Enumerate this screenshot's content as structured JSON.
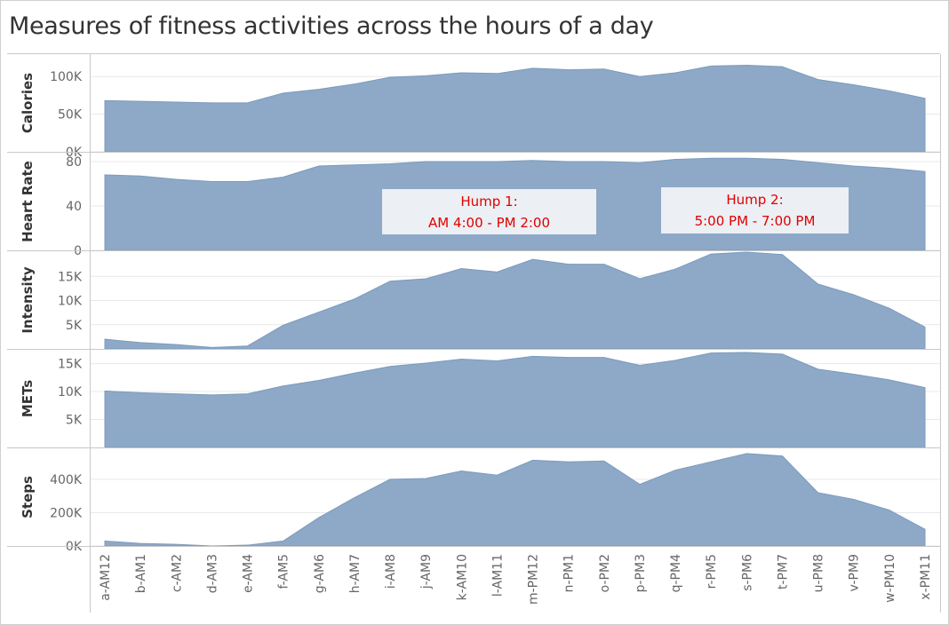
{
  "title": "Measures of fitness activities across the hours of a day",
  "colors": {
    "area_fill": "#8da9c7",
    "area_stroke": "#7b9abd",
    "gridline": "#e9e9e9",
    "annotation_bg": "#eceff3",
    "annotation_text": "#e00000"
  },
  "chart_data": {
    "type": "area",
    "x": [
      "a-AM12",
      "b-AM1",
      "c-AM2",
      "d-AM3",
      "e-AM4",
      "f-AM5",
      "g-AM6",
      "h-AM7",
      "i-AM8",
      "j-AM9",
      "k-AM10",
      "l-AM11",
      "m-PM12",
      "n-PM1",
      "o-PM2",
      "p-PM3",
      "q-PM4",
      "r-PM5",
      "s-PM6",
      "t-PM7",
      "u-PM8",
      "v-PM9",
      "w-PM10",
      "x-PM11"
    ],
    "grid": true,
    "panels": [
      {
        "name": "Calories",
        "ylim": [
          0,
          125000
        ],
        "ticks": [
          {
            "v": 0,
            "label": "0K"
          },
          {
            "v": 50000,
            "label": "50K"
          },
          {
            "v": 100000,
            "label": "100K"
          }
        ],
        "values": [
          68000,
          67000,
          66000,
          65000,
          65000,
          78000,
          83000,
          90000,
          99000,
          101000,
          105000,
          104000,
          111000,
          109000,
          110000,
          100000,
          105000,
          114000,
          115000,
          113000,
          96000,
          89000,
          81000,
          71000
        ]
      },
      {
        "name": "Heart Rate",
        "ylim": [
          0,
          88
        ],
        "ticks": [
          {
            "v": 0,
            "label": "0"
          },
          {
            "v": 40,
            "label": "40"
          },
          {
            "v": 80,
            "label": "80"
          }
        ],
        "values": [
          68,
          67,
          64,
          62,
          62,
          66,
          76,
          77,
          78,
          80,
          80,
          80,
          81,
          80,
          80,
          79,
          82,
          83,
          83,
          82,
          79,
          76,
          74,
          71
        ]
      },
      {
        "name": "Intensity",
        "ylim": [
          0,
          20000
        ],
        "ticks": [
          {
            "v": 5000,
            "label": "5K"
          },
          {
            "v": 10000,
            "label": "10K"
          },
          {
            "v": 15000,
            "label": "15K"
          }
        ],
        "values": [
          2000,
          1300,
          900,
          300,
          600,
          4900,
          7600,
          10300,
          14000,
          14500,
          16600,
          15900,
          18500,
          17500,
          17500,
          14500,
          16500,
          19600,
          20000,
          19500,
          13400,
          11200,
          8400,
          4500
        ]
      },
      {
        "name": "METs",
        "ylim": [
          0,
          17000
        ],
        "ticks": [
          {
            "v": 5000,
            "label": "5K"
          },
          {
            "v": 10000,
            "label": "10K"
          },
          {
            "v": 15000,
            "label": "15K"
          }
        ],
        "values": [
          10100,
          9800,
          9600,
          9400,
          9600,
          11000,
          12000,
          13300,
          14500,
          15100,
          15800,
          15500,
          16300,
          16100,
          16100,
          14700,
          15600,
          16900,
          17000,
          16700,
          14000,
          13100,
          12100,
          10700
        ]
      },
      {
        "name": "Steps",
        "ylim": [
          0,
          570000
        ],
        "ticks": [
          {
            "v": 0,
            "label": "0K"
          },
          {
            "v": 200000,
            "label": "200K"
          },
          {
            "v": 400000,
            "label": "400K"
          }
        ],
        "values": [
          30000,
          15000,
          10000,
          0,
          5000,
          30000,
          170000,
          290000,
          400000,
          405000,
          450000,
          425000,
          515000,
          505000,
          510000,
          370000,
          455000,
          505000,
          555000,
          540000,
          320000,
          280000,
          215000,
          100000
        ]
      }
    ],
    "annotations": [
      {
        "lines": [
          "Hump 1:",
          "AM 4:00 - PM 2:00"
        ]
      },
      {
        "lines": [
          "Hump 2:",
          "5:00 PM - 7:00 PM"
        ]
      }
    ]
  }
}
